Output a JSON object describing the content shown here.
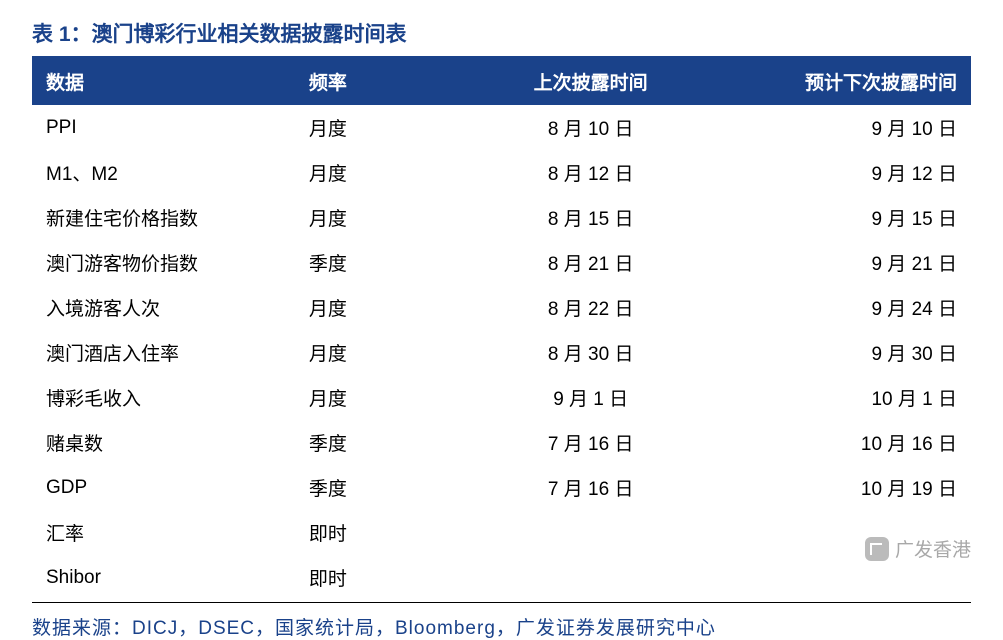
{
  "title": "表 1：澳门博彩行业相关数据披露时间表",
  "headers": {
    "data": "数据",
    "freq": "频率",
    "last": "上次披露时间",
    "next": "预计下次披露时间"
  },
  "table": {
    "columns": [
      "数据",
      "频率",
      "上次披露时间",
      "预计下次披露时间"
    ],
    "rows": [
      [
        "PPI",
        "月度",
        "8 月 10 日",
        "9 月 10 日"
      ],
      [
        "M1、M2",
        "月度",
        "8 月 12 日",
        "9 月 12 日"
      ],
      [
        "新建住宅价格指数",
        "月度",
        "8 月 15 日",
        "9 月 15 日"
      ],
      [
        "澳门游客物价指数",
        "季度",
        "8 月 21 日",
        "9 月 21 日"
      ],
      [
        "入境游客人次",
        "月度",
        "8 月 22 日",
        "9 月 24 日"
      ],
      [
        "澳门酒店入住率",
        "月度",
        "8 月 30 日",
        "9 月 30 日"
      ],
      [
        "博彩毛收入",
        "月度",
        "9 月 1 日",
        "10 月 1 日"
      ],
      [
        "赌桌数",
        "季度",
        "7 月 16 日",
        "10 月 16 日"
      ],
      [
        "GDP",
        "季度",
        "7 月 16 日",
        "10 月 19 日"
      ],
      [
        "汇率",
        "即时",
        "",
        ""
      ],
      [
        "Shibor",
        "即时",
        "",
        ""
      ]
    ],
    "col_widths_pct": [
      28,
      18,
      27,
      27
    ],
    "col_align": [
      "left",
      "left",
      "center",
      "right"
    ],
    "header_bg": "#1a428a",
    "header_fg": "#ffffff",
    "body_fg": "#000000",
    "fontsize": 19,
    "title_rule_color": "#1a428a",
    "footer_rule_color": "#000000"
  },
  "source": "数据来源：DICJ，DSEC，国家统计局，Bloomberg，广发证券发展研究中心",
  "watermark": "广发香港",
  "colors": {
    "title": "#1a428a",
    "source": "#1a428a",
    "watermark": "#9a9a9a",
    "background": "#ffffff"
  },
  "typography": {
    "title_fontsize": 21,
    "title_weight": "bold",
    "body_fontsize": 19,
    "font_family": "Microsoft YaHei, SimSun, Arial, sans-serif"
  }
}
